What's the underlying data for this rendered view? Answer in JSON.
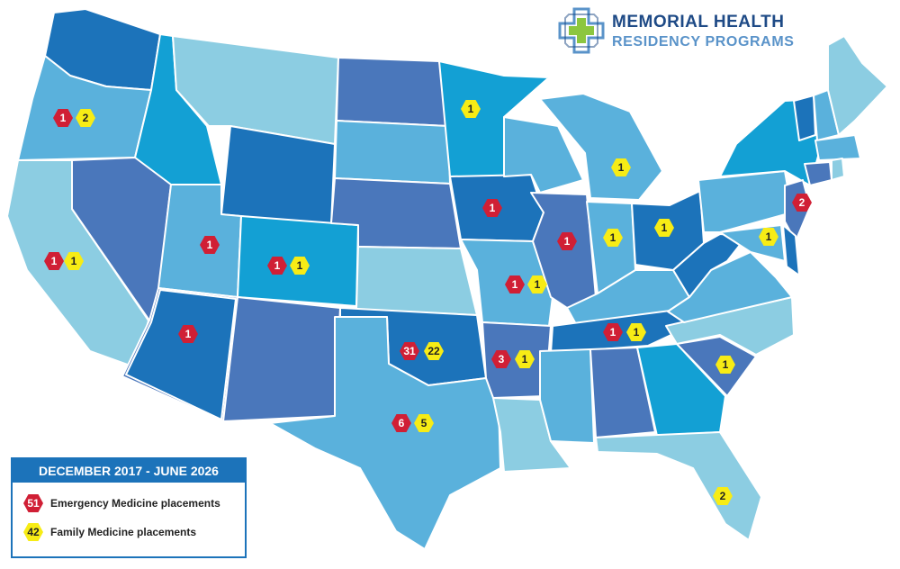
{
  "brand": {
    "title": "MEMORIAL HEALTH",
    "subtitle": "RESIDENCY PROGRAMS",
    "colors": {
      "title": "#1e4a86",
      "subtitle": "#5a93c9",
      "cross_green": "#8cc63f"
    },
    "logo_icon": "medical-cross-icon"
  },
  "legend": {
    "period": "DECEMBER 2017 - JUNE 2026",
    "em": {
      "count": "51",
      "label": "Emergency Medicine placements",
      "color": "#d01f35"
    },
    "fm": {
      "count": "42",
      "label": "Family Medicine placements",
      "color": "#f7ec15"
    }
  },
  "placements": [
    {
      "state": "Oregon",
      "em": "1",
      "fm": "2"
    },
    {
      "state": "California",
      "em": "1",
      "fm": "1"
    },
    {
      "state": "Utah",
      "em": "1"
    },
    {
      "state": "Arizona",
      "em": "1"
    },
    {
      "state": "Colorado",
      "em": "1",
      "fm": "1"
    },
    {
      "state": "Minnesota",
      "fm": "1"
    },
    {
      "state": "Iowa",
      "em": "1"
    },
    {
      "state": "Illinois",
      "em": "1"
    },
    {
      "state": "Missouri",
      "em": "1",
      "fm": "1"
    },
    {
      "state": "Oklahoma",
      "em": "31",
      "fm": "22"
    },
    {
      "state": "Texas",
      "em": "6",
      "fm": "5"
    },
    {
      "state": "Arkansas",
      "em": "3",
      "fm": "1"
    },
    {
      "state": "Tennessee",
      "em": "1",
      "fm": "1"
    },
    {
      "state": "Michigan",
      "fm": "1"
    },
    {
      "state": "Indiana",
      "fm": "1"
    },
    {
      "state": "Ohio",
      "fm": "1"
    },
    {
      "state": "New Jersey",
      "em": "2"
    },
    {
      "state": "Maryland",
      "fm": "1"
    },
    {
      "state": "South Carolina",
      "fm": "1"
    },
    {
      "state": "Florida",
      "fm": "2"
    }
  ],
  "palette": [
    "#8ccde2",
    "#5ab1dc",
    "#13a0d4",
    "#4a77bb",
    "#1c73ba"
  ]
}
